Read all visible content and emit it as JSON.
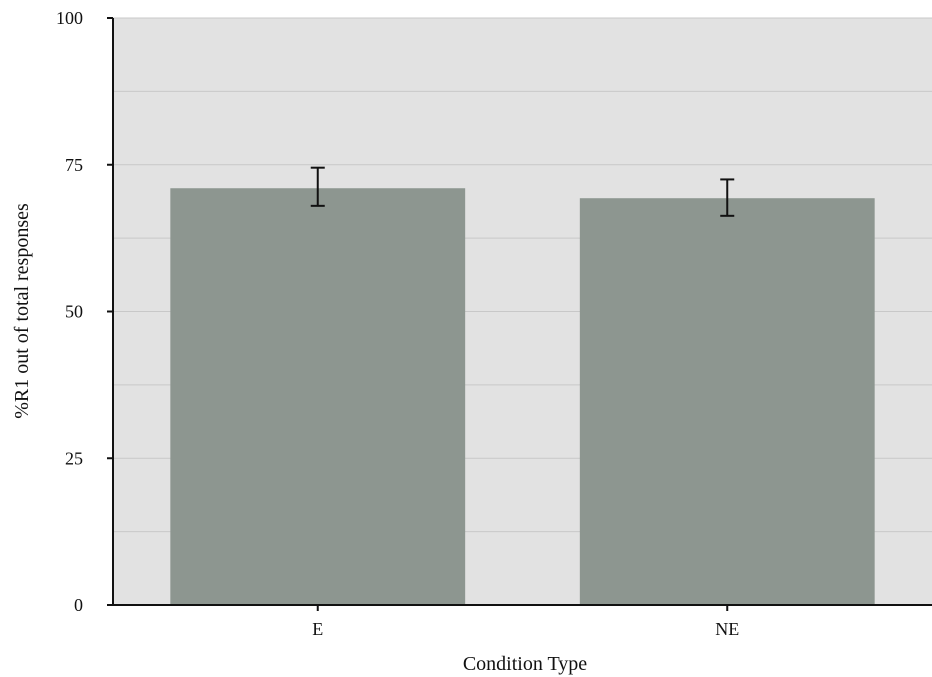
{
  "chart_data": {
    "type": "bar",
    "title": "",
    "xlabel": "Condition Type",
    "ylabel": "%R1 out of total responses",
    "categories": [
      "E",
      "NE"
    ],
    "values": [
      71,
      69.3
    ],
    "error_bars": [
      {
        "low": 68,
        "high": 74.5
      },
      {
        "low": 66.3,
        "high": 72.5
      }
    ],
    "ylim": [
      0,
      100
    ],
    "yticks": [
      0,
      25,
      50,
      75,
      100
    ],
    "ytick_labels": [
      "0",
      "25",
      "50",
      "75",
      "100"
    ],
    "grid": true,
    "minor_gridlines": [
      12.5,
      37.5,
      62.5,
      87.5
    ],
    "legend": "none",
    "colors": {
      "bar": "#8d9690",
      "plot_background": "#e2e2e2",
      "gridline": "#c8c8c8",
      "axis": "#111111",
      "error_bar": "#111111"
    }
  }
}
